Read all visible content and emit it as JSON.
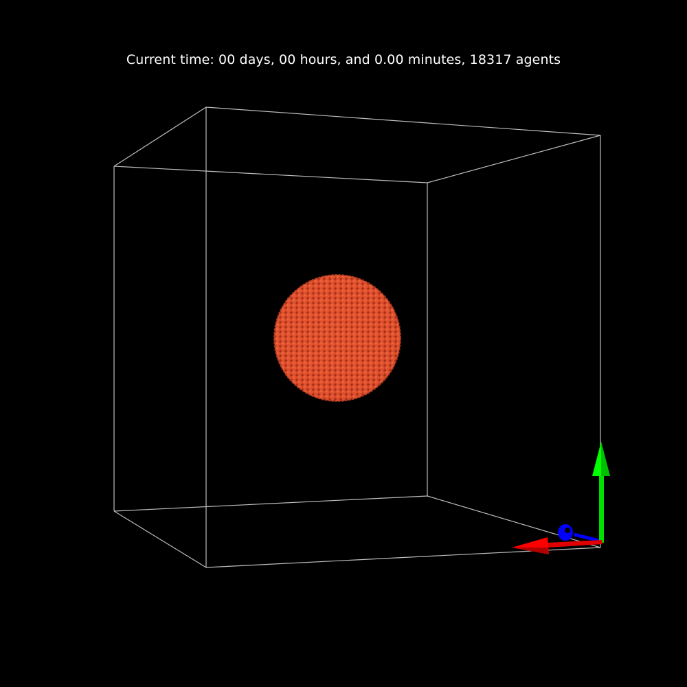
{
  "status": {
    "text": "Current time: 00 days, 00 hours, and 0.00 minutes, 18317 agents"
  },
  "scene": {
    "background_color": "#000000",
    "box_edge_color": "#bbbbbb",
    "agent_color": "#e14a2a",
    "agent_dark_color": "#8a2414",
    "agent_count": 18317
  },
  "axes": {
    "x_color": "#ff0000",
    "y_color": "#00ff00",
    "z_color": "#0000ff",
    "icons": [
      "x-axis-arrow-icon",
      "y-axis-arrow-icon",
      "z-axis-arrow-icon"
    ]
  }
}
